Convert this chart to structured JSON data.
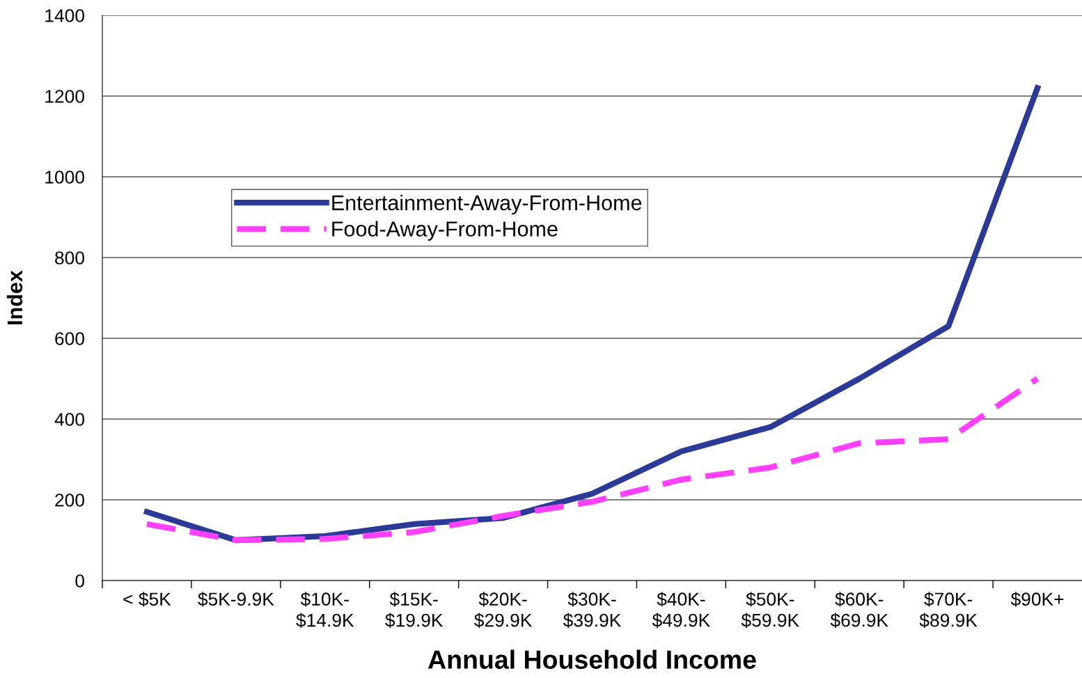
{
  "chart_data": {
    "type": "line",
    "xlabel": "Annual Household Income",
    "ylabel": "Index",
    "categories": [
      "< $5K",
      "$5K-9.9K",
      "$10K-\n$14.9K",
      "$15K-\n$19.9K",
      "$20K-\n$29.9K",
      "$30K-\n$39.9K",
      "$40K-\n$49.9K",
      "$50K-\n$59.9K",
      "$60K-\n$69.9K",
      "$70K-\n$89.9K",
      "$90K+"
    ],
    "series": [
      {
        "name": "Entertainment-Away-From-Home",
        "color": "#2b3a96",
        "line_style": "solid",
        "values": [
          170,
          100,
          110,
          140,
          155,
          215,
          320,
          380,
          500,
          630,
          1220
        ]
      },
      {
        "name": "Food-Away-From-Home",
        "color": "#ff40ff",
        "line_style": "dashed",
        "values": [
          140,
          100,
          103,
          120,
          160,
          195,
          250,
          280,
          340,
          350,
          500
        ]
      }
    ],
    "ylim": [
      0,
      1400
    ],
    "yticks": [
      0,
      200,
      400,
      600,
      800,
      1000,
      1200,
      1400
    ],
    "grid": "y",
    "legend": "top left",
    "marker": "none"
  }
}
